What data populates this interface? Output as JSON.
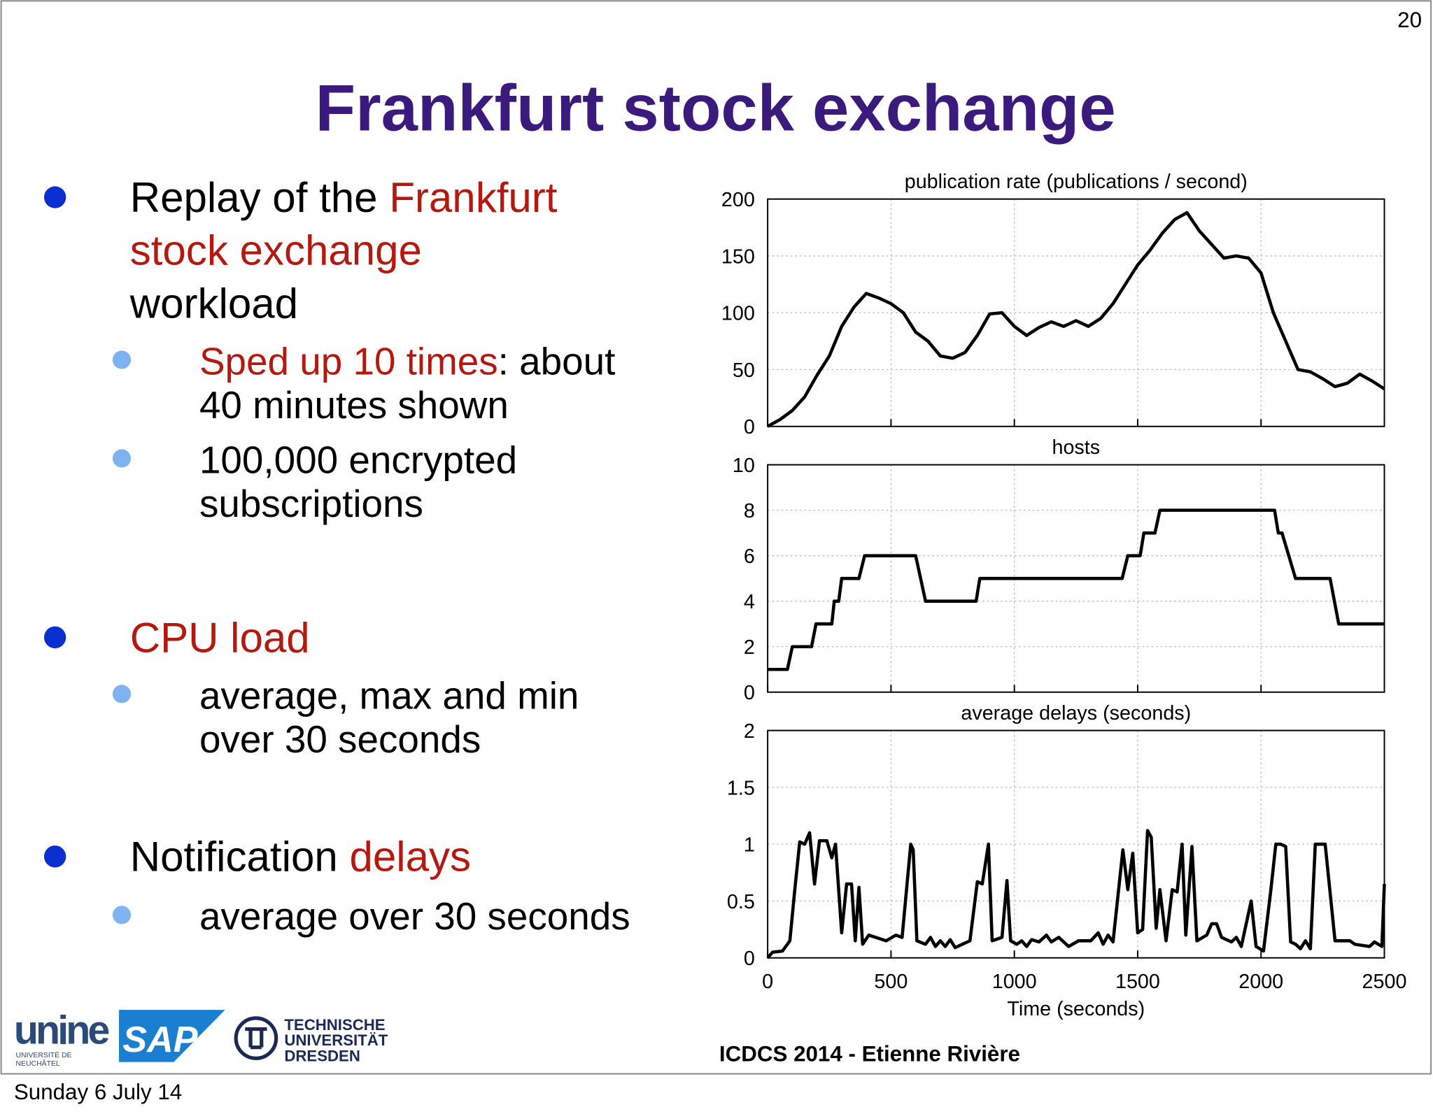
{
  "slide": {
    "page_number": "20",
    "title": "Frankfurt stock exchange",
    "bullets": [
      {
        "level": 1,
        "lines": [
          [
            {
              "text": "Replay of the "
            },
            {
              "text": "Frankfurt",
              "color": "#b5180f"
            }
          ],
          [
            {
              "text": "stock exchange",
              "color": "#b5180f"
            }
          ],
          [
            {
              "text": "workload"
            }
          ]
        ]
      },
      {
        "level": 2,
        "lines": [
          [
            {
              "text": "Sped up 10 times",
              "color": "#b5180f"
            },
            {
              "text": ": about"
            }
          ],
          [
            {
              "text": "40 minutes shown"
            }
          ]
        ]
      },
      {
        "level": 2,
        "lines": [
          [
            {
              "text": "100,000 encrypted"
            }
          ],
          [
            {
              "text": "subscriptions"
            }
          ]
        ]
      },
      {
        "level": 1,
        "lines": [
          [
            {
              "text": "CPU load",
              "color": "#b5180f"
            }
          ]
        ]
      },
      {
        "level": 2,
        "lines": [
          [
            {
              "text": "average, max and min"
            }
          ],
          [
            {
              "text": "over 30 seconds"
            }
          ]
        ]
      },
      {
        "level": 1,
        "lines": [
          [
            {
              "text": "Notification "
            },
            {
              "text": "delays",
              "color": "#b5180f"
            }
          ]
        ]
      },
      {
        "level": 2,
        "lines": [
          [
            {
              "text": "average over 30 seconds"
            }
          ]
        ]
      }
    ],
    "footer": "ICDCS 2014 - Etienne Rivière",
    "date": "Sunday 6 July 14",
    "logos": {
      "unine": "unine",
      "unine_sub1": "UNIVERSITÉ DE",
      "unine_sub2": "NEUCHÂTEL",
      "sap": "SAP",
      "tu1": "TECHNISCHE",
      "tu2": "UNIVERSITÄT",
      "tu3": "DRESDEN"
    }
  },
  "chart_data": [
    {
      "type": "line",
      "title": "publication rate (publications / second)",
      "color": "#000000",
      "grid": true,
      "x": [
        0,
        50,
        100,
        150,
        200,
        250,
        300,
        350,
        400,
        450,
        500,
        550,
        600,
        650,
        700,
        750,
        800,
        850,
        900,
        950,
        1000,
        1050,
        1100,
        1150,
        1200,
        1250,
        1300,
        1350,
        1400,
        1450,
        1500,
        1550,
        1600,
        1650,
        1700,
        1750,
        1800,
        1850,
        1900,
        1950,
        2000,
        2050,
        2100,
        2150,
        2200,
        2250,
        2300,
        2350,
        2400,
        2450,
        2500
      ],
      "values": [
        0,
        6,
        14,
        26,
        45,
        62,
        88,
        105,
        117,
        113,
        108,
        100,
        83,
        75,
        62,
        60,
        65,
        80,
        99,
        100,
        88,
        80,
        87,
        92,
        88,
        93,
        88,
        95,
        108,
        125,
        142,
        155,
        170,
        182,
        188,
        172,
        160,
        148,
        150,
        148,
        135,
        100,
        75,
        50,
        48,
        42,
        35,
        38,
        46,
        40,
        33
      ],
      "xlim": [
        0,
        2500
      ],
      "ylim": [
        0,
        200
      ],
      "yticks": [
        0,
        50,
        100,
        150,
        200
      ]
    },
    {
      "type": "line",
      "title": "hosts",
      "color": "#000000",
      "grid": true,
      "x": [
        0,
        80,
        100,
        178,
        196,
        260,
        270,
        288,
        300,
        370,
        393,
        600,
        640,
        845,
        860,
        1437,
        1460,
        1510,
        1525,
        1570,
        1590,
        2055,
        2070,
        2085,
        2140,
        2280,
        2315,
        2500
      ],
      "values": [
        1,
        1,
        2,
        2,
        3,
        3,
        4,
        4,
        5,
        5,
        6,
        6,
        4,
        4,
        5,
        5,
        6,
        6,
        7,
        7,
        8,
        8,
        7,
        7,
        5,
        5,
        3,
        3
      ],
      "xlim": [
        0,
        2500
      ],
      "ylim": [
        0,
        10
      ],
      "yticks": [
        0,
        2,
        4,
        6,
        8,
        10
      ]
    },
    {
      "type": "line",
      "title": "average delays (seconds)",
      "xlabel": "Time (seconds)",
      "color": "#000000",
      "grid": true,
      "x": [
        0,
        20,
        60,
        90,
        110,
        130,
        150,
        170,
        190,
        210,
        240,
        260,
        275,
        300,
        320,
        340,
        355,
        370,
        385,
        410,
        480,
        520,
        545,
        580,
        590,
        605,
        640,
        660,
        680,
        700,
        720,
        740,
        760,
        820,
        850,
        870,
        895,
        910,
        950,
        970,
        985,
        1010,
        1030,
        1050,
        1070,
        1100,
        1130,
        1150,
        1180,
        1220,
        1260,
        1310,
        1340,
        1360,
        1380,
        1400,
        1440,
        1460,
        1480,
        1500,
        1520,
        1540,
        1555,
        1575,
        1590,
        1615,
        1640,
        1660,
        1680,
        1695,
        1720,
        1740,
        1780,
        1800,
        1820,
        1840,
        1880,
        1900,
        1920,
        1960,
        1980,
        2010,
        2040,
        2060,
        2080,
        2100,
        2120,
        2140,
        2160,
        2180,
        2200,
        2220,
        2260,
        2300,
        2360,
        2380,
        2440,
        2460,
        2490,
        2500
      ],
      "values": [
        0,
        0.05,
        0.06,
        0.15,
        0.6,
        1.02,
        1,
        1.1,
        0.65,
        1.03,
        1.03,
        0.88,
        1,
        0.22,
        0.65,
        0.65,
        0.15,
        0.62,
        0.12,
        0.2,
        0.15,
        0.2,
        0.18,
        1,
        0.95,
        0.15,
        0.12,
        0.18,
        0.1,
        0.15,
        0.1,
        0.16,
        0.09,
        0.15,
        0.67,
        0.65,
        1,
        0.15,
        0.18,
        0.68,
        0.15,
        0.12,
        0.15,
        0.1,
        0.16,
        0.14,
        0.2,
        0.14,
        0.18,
        0.1,
        0.15,
        0.15,
        0.22,
        0.12,
        0.2,
        0.14,
        0.95,
        0.6,
        0.92,
        0.22,
        0.25,
        1.12,
        1.06,
        0.26,
        0.6,
        0.15,
        0.6,
        0.58,
        1,
        0.2,
        0.98,
        0.15,
        0.2,
        0.3,
        0.3,
        0.18,
        0.14,
        0.18,
        0.1,
        0.5,
        0.1,
        0.06,
        0.6,
        1,
        1,
        0.98,
        0.14,
        0.12,
        0.08,
        0.15,
        0.08,
        1,
        1,
        0.15,
        0.15,
        0.12,
        0.1,
        0.14,
        0.1,
        0.65
      ],
      "xlim": [
        0,
        2500
      ],
      "ylim": [
        0,
        2
      ],
      "yticks": [
        0,
        0.5,
        1,
        1.5,
        2
      ],
      "xticks": [
        0,
        500,
        1000,
        1500,
        2000,
        2500
      ]
    }
  ]
}
